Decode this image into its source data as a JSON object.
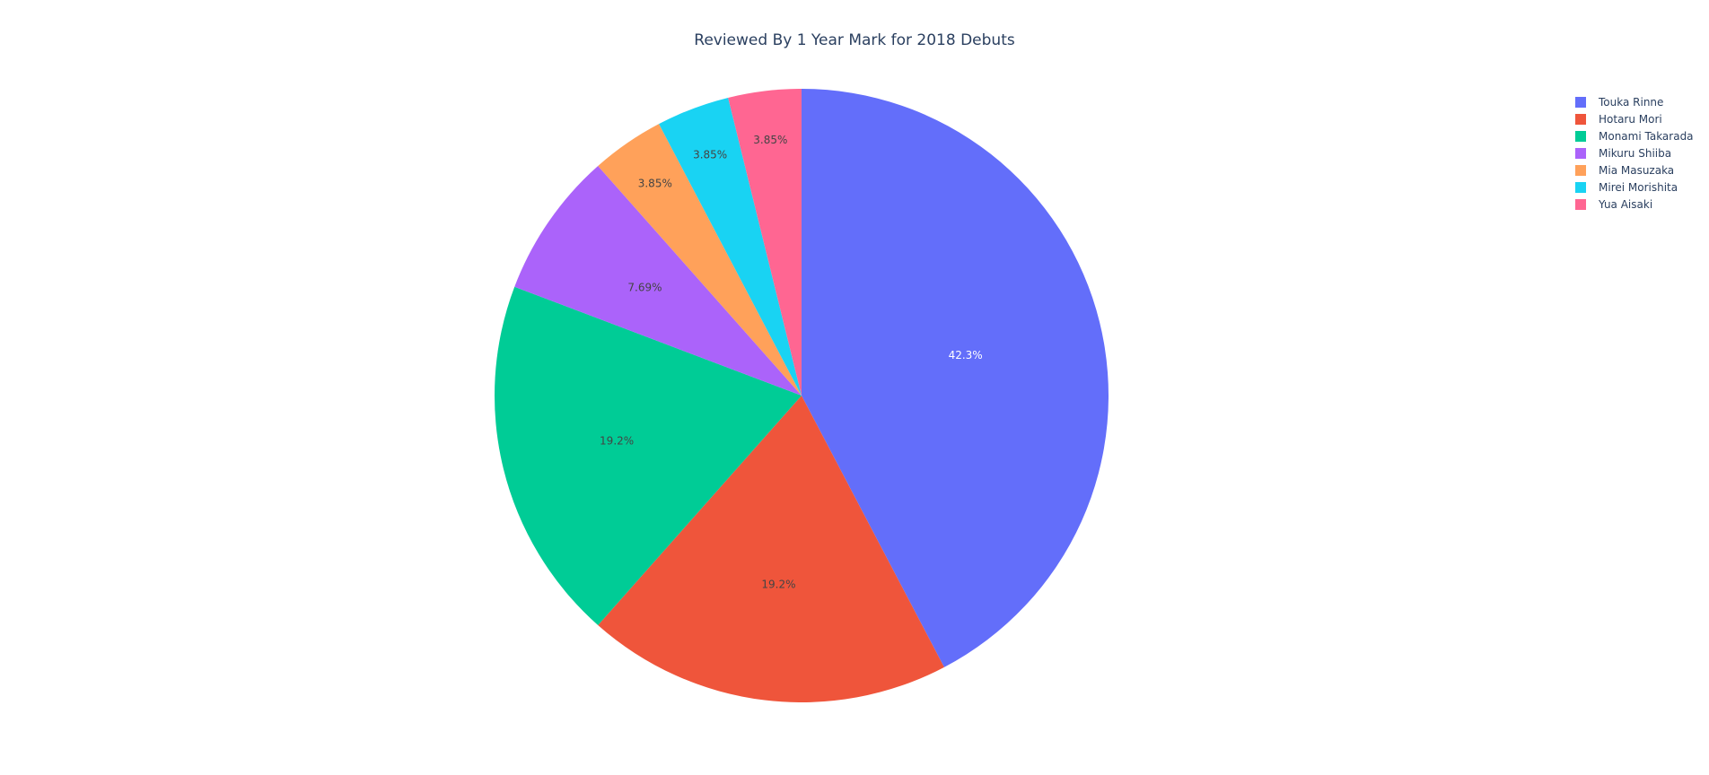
{
  "chart_data": {
    "type": "pie",
    "title": "Reviewed By 1 Year Mark for 2018 Debuts",
    "labels": [
      "Touka Rinne",
      "Hotaru Mori",
      "Monami Takarada",
      "Mikuru Shiiba",
      "Mia Masuzaka",
      "Mirei Morishita",
      "Yua Aisaki"
    ],
    "values": [
      11,
      5,
      5,
      2,
      1,
      1,
      1
    ],
    "percent_labels": [
      "42.3%",
      "19.2%",
      "19.2%",
      "7.69%",
      "3.85%",
      "3.85%",
      "3.85%"
    ],
    "colors": [
      "#636efa",
      "#EF553B",
      "#00cc96",
      "#ab63fa",
      "#FFA15A",
      "#19d3f3",
      "#FF6692"
    ],
    "label_colors": [
      "#ffffff",
      "#444444",
      "#444444",
      "#444444",
      "#444444",
      "#444444",
      "#444444"
    ],
    "direction": "clockwise",
    "start": "top",
    "legend_position": "top-right"
  }
}
